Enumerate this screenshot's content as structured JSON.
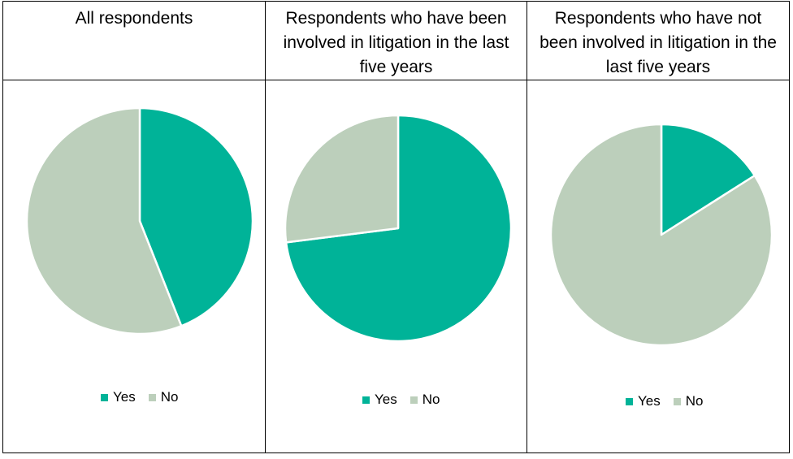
{
  "colors": {
    "yes": "#00b398",
    "no": "#bccfbb",
    "separator": "#ffffff"
  },
  "legend": {
    "yes_label": "Yes",
    "no_label": "No"
  },
  "panels": [
    {
      "header": "All respondents"
    },
    {
      "header": "Respondents who have been involved in litigation in the last five years"
    },
    {
      "header": "Respondents who have not been involved in litigation in the last five years"
    }
  ],
  "chart_data": [
    {
      "type": "pie",
      "title": "All respondents",
      "categories": [
        "Yes",
        "No"
      ],
      "values": [
        44,
        56
      ],
      "legend_position": "bottom"
    },
    {
      "type": "pie",
      "title": "Respondents who have been involved in litigation in the last five years",
      "categories": [
        "Yes",
        "No"
      ],
      "values": [
        73,
        27
      ],
      "legend_position": "bottom"
    },
    {
      "type": "pie",
      "title": "Respondents who have not been involved in litigation in the last five years",
      "categories": [
        "Yes",
        "No"
      ],
      "values": [
        16,
        84
      ],
      "legend_position": "bottom"
    }
  ]
}
